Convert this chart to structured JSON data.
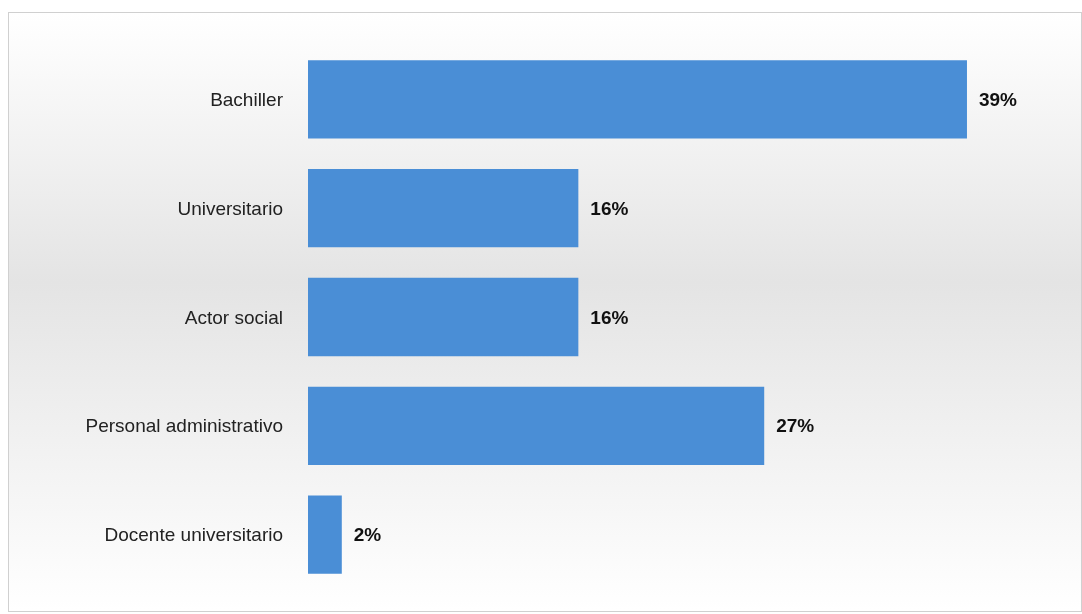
{
  "chart_data": {
    "type": "bar",
    "orientation": "horizontal",
    "categories": [
      "Bachiller",
      "Universitario",
      "Actor social",
      "Personal administrativo",
      "Docente universitario"
    ],
    "values": [
      39,
      16,
      16,
      27,
      2
    ],
    "value_labels": [
      "39%",
      "16%",
      "16%",
      "27%",
      "2%"
    ],
    "color": "#4a8ed6"
  }
}
